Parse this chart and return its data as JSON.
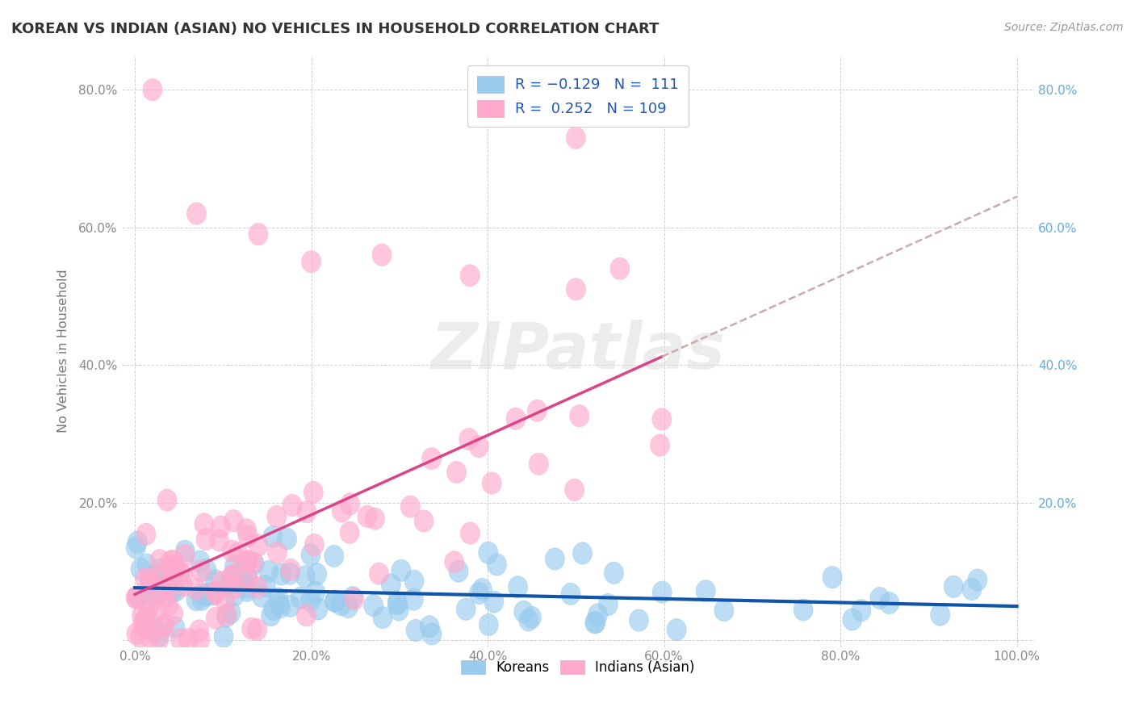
{
  "title": "KOREAN VS INDIAN (ASIAN) NO VEHICLES IN HOUSEHOLD CORRELATION CHART",
  "source": "Source: ZipAtlas.com",
  "ylabel": "No Vehicles in Household",
  "korean_R": -0.129,
  "korean_N": 111,
  "indian_R": 0.252,
  "indian_N": 109,
  "xlim": [
    0.0,
    1.0
  ],
  "ylim": [
    0.0,
    0.85
  ],
  "xticks": [
    0.0,
    0.2,
    0.4,
    0.6,
    0.8,
    1.0
  ],
  "yticks": [
    0.0,
    0.2,
    0.4,
    0.6,
    0.8
  ],
  "xticklabels": [
    "0.0%",
    "20.0%",
    "40.0%",
    "60.0%",
    "80.0%",
    "100.0%"
  ],
  "yticklabels": [
    "",
    "20.0%",
    "40.0%",
    "60.0%",
    "80.0%"
  ],
  "right_yticklabels": [
    "",
    "20.0%",
    "40.0%",
    "60.0%",
    "80.0%"
  ],
  "korean_color": "#99ccee",
  "indian_color": "#ffaacc",
  "korean_line_color": "#1155aa",
  "indian_line_color": "#dd4488",
  "indian_dash_color": "#ccaaaa",
  "watermark_text": "ZIPatlas",
  "watermark_color": "#dddddd",
  "background_color": "#ffffff",
  "grid_color": "#cccccc",
  "legend_color": "#2255bb",
  "tick_color": "#888888",
  "title_color": "#333333",
  "source_color": "#999999",
  "ylabel_color": "#777777"
}
